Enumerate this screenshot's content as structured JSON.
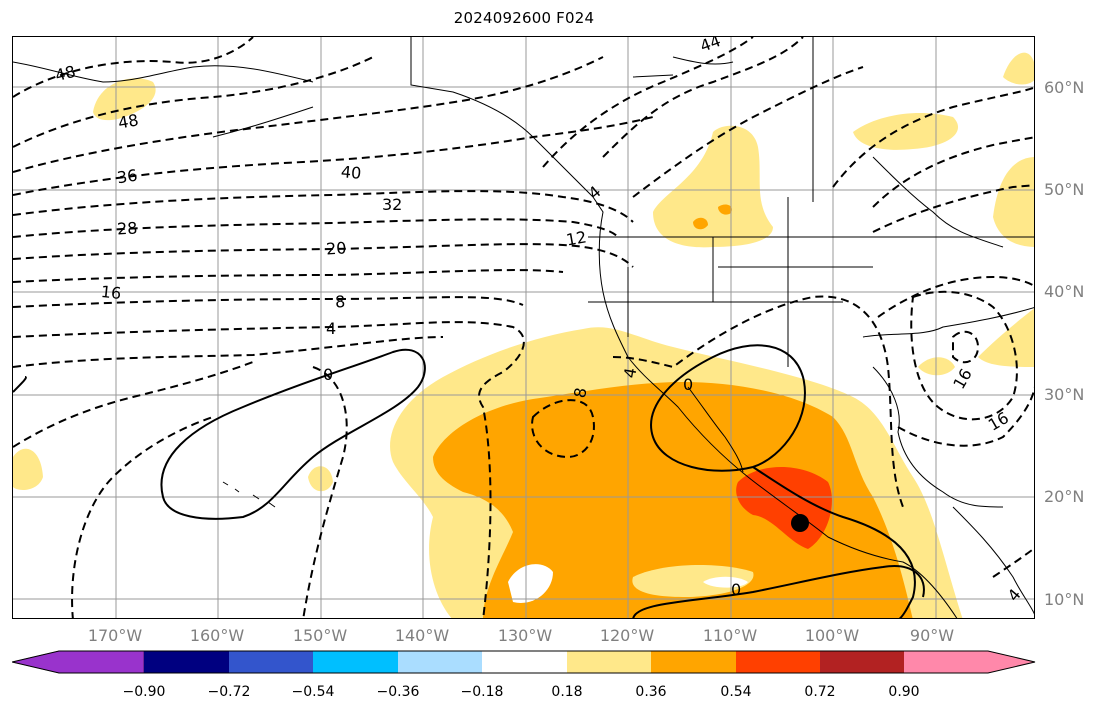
{
  "title": "2024092600 F024",
  "lat_labels": [
    "60°N",
    "50°N",
    "40°N",
    "30°N",
    "20°N",
    "10°N"
  ],
  "lon_labels": [
    "170°W",
    "160°W",
    "150°W",
    "140°W",
    "130°W",
    "120°W",
    "110°W",
    "100°W",
    "90°W"
  ],
  "contour_labels": [
    "48",
    "48",
    "36",
    "40",
    "28",
    "32",
    "20",
    "12",
    "16",
    "8",
    "4",
    "0",
    "8",
    "4",
    "0",
    "16",
    "16",
    "4",
    "44",
    "4",
    "0"
  ],
  "storm_marker": {
    "lat": 17.5,
    "lon": -103.0
  },
  "colorbar": {
    "ticks": [
      "−0.90",
      "−0.72",
      "−0.54",
      "−0.36",
      "−0.18",
      "0.18",
      "0.36",
      "0.54",
      "0.72",
      "0.90"
    ],
    "colors": [
      "#9933cc",
      "#000080",
      "#3355cc",
      "#00bfff",
      "#aaddff",
      "#ffffff",
      "#ffe88a",
      "#ffa500",
      "#ff4000",
      "#b22222",
      "#ff88aa"
    ]
  },
  "shading_colors": {
    "light": "#ffe88a",
    "medium": "#ffa500",
    "strong": "#ff4000"
  }
}
